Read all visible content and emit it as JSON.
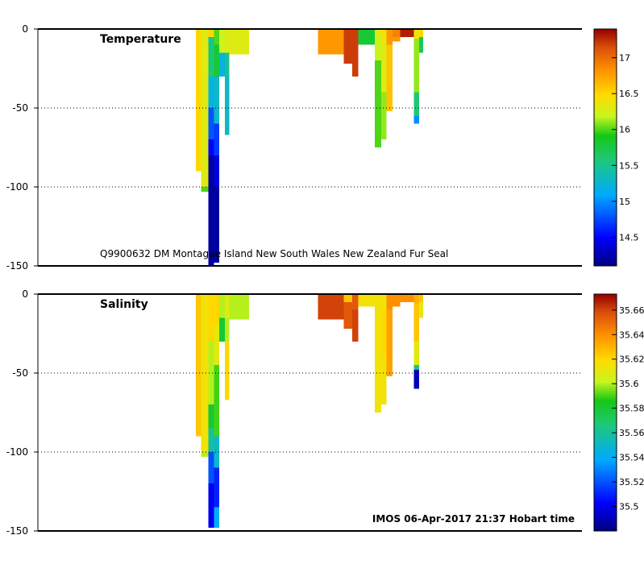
{
  "chart_data": [
    {
      "type": "heatmap",
      "panel": "temperature",
      "title": "Temperature",
      "caption": "Q9900632 DM Montague Island New South Wales New Zealand Fur Seal",
      "ylabel": "",
      "ylim": [
        -150,
        0
      ],
      "yticks": [
        0,
        -50,
        -100,
        -150
      ],
      "ytick_labels": [
        "0",
        "-50",
        "-100",
        "-150"
      ],
      "colorbar": {
        "range": [
          14.1,
          17.4
        ],
        "ticks": [
          14.5,
          15,
          15.5,
          16,
          16.5,
          17
        ],
        "tick_labels": [
          "14.5",
          "15",
          "15.5",
          "16",
          "16.5",
          "17"
        ]
      },
      "x_range": [
        0,
        100
      ],
      "profiles": [
        {
          "x": [
            29.0,
            30.0
          ],
          "segments": [
            [
              0,
              90,
              16.5
            ]
          ]
        },
        {
          "x": [
            30.0,
            31.3
          ],
          "segments": [
            [
              0,
              100,
              16.3
            ],
            [
              100,
              103,
              16.0
            ]
          ]
        },
        {
          "x": [
            31.3,
            32.4
          ],
          "segments": [
            [
              0,
              5,
              16.5
            ],
            [
              5,
              10,
              15.5
            ],
            [
              10,
              30,
              15.6
            ],
            [
              30,
              50,
              15.2
            ],
            [
              50,
              70,
              14.8
            ],
            [
              70,
              80,
              14.5
            ],
            [
              80,
              150,
              14.2
            ]
          ]
        },
        {
          "x": [
            32.4,
            33.3
          ],
          "segments": [
            [
              0,
              10,
              16.0
            ],
            [
              10,
              30,
              15.8
            ],
            [
              30,
              60,
              15.3
            ],
            [
              60,
              80,
              14.7
            ],
            [
              80,
              100,
              14.4
            ],
            [
              100,
              148,
              14.2
            ]
          ]
        },
        {
          "x": [
            33.3,
            34.4
          ],
          "segments": [
            [
              0,
              15,
              16.2
            ],
            [
              15,
              30,
              15.2
            ]
          ]
        },
        {
          "x": [
            34.4,
            35.2
          ],
          "segments": [
            [
              0,
              15,
              16.3
            ],
            [
              15,
              30,
              15.5
            ],
            [
              30,
              67,
              15.3
            ]
          ]
        },
        {
          "x": [
            35.2,
            38.8
          ],
          "segments": [
            [
              0,
              16,
              16.3
            ]
          ]
        },
        {
          "x": [
            51.5,
            56.2
          ],
          "segments": [
            [
              0,
              16,
              16.8
            ]
          ]
        },
        {
          "x": [
            56.2,
            57.8
          ],
          "segments": [
            [
              0,
              10,
              17.2
            ],
            [
              10,
              22,
              17.2
            ]
          ]
        },
        {
          "x": [
            57.8,
            58.9
          ],
          "segments": [
            [
              0,
              10,
              17.2
            ],
            [
              10,
              30,
              17.2
            ]
          ]
        },
        {
          "x": [
            58.9,
            61.9
          ],
          "segments": [
            [
              0,
              10,
              15.8
            ]
          ]
        },
        {
          "x": [
            61.9,
            63.1
          ],
          "segments": [
            [
              0,
              5,
              16.3
            ],
            [
              5,
              20,
              16.2
            ],
            [
              20,
              75,
              16.0
            ]
          ]
        },
        {
          "x": [
            63.1,
            64.1
          ],
          "segments": [
            [
              0,
              10,
              16.4
            ],
            [
              10,
              40,
              16.3
            ],
            [
              40,
              70,
              16.1
            ]
          ]
        },
        {
          "x": [
            64.1,
            65.2
          ],
          "segments": [
            [
              0,
              10,
              16.8
            ],
            [
              10,
              52,
              16.6
            ]
          ]
        },
        {
          "x": [
            65.2,
            66.6
          ],
          "segments": [
            [
              0,
              5,
              16.9
            ],
            [
              5,
              8,
              16.8
            ]
          ]
        },
        {
          "x": [
            66.6,
            69.1
          ],
          "segments": [
            [
              0,
              5,
              17.3
            ]
          ]
        },
        {
          "x": [
            69.1,
            70.1
          ],
          "segments": [
            [
              0,
              6,
              16.4
            ],
            [
              6,
              40,
              16.1
            ],
            [
              40,
              55,
              15.6
            ],
            [
              55,
              60,
              15.0
            ]
          ]
        },
        {
          "x": [
            70.1,
            70.8
          ],
          "segments": [
            [
              0,
              5,
              16.5
            ],
            [
              5,
              15,
              15.7
            ]
          ]
        }
      ]
    },
    {
      "type": "heatmap",
      "panel": "salinity",
      "title": "Salinity",
      "caption": "",
      "ylabel": "",
      "ylim": [
        -150,
        0
      ],
      "yticks": [
        0,
        -50,
        -100,
        -150
      ],
      "ytick_labels": [
        "0",
        "-50",
        "-100",
        "-150"
      ],
      "colorbar": {
        "range": [
          35.48,
          35.673
        ],
        "ticks": [
          35.5,
          35.52,
          35.54,
          35.56,
          35.58,
          35.6,
          35.62,
          35.64,
          35.66
        ],
        "tick_labels": [
          "35.5",
          "35.52",
          "35.54",
          "35.56",
          "35.58",
          "35.6",
          "35.62",
          "35.64",
          "35.66"
        ]
      },
      "x_range": [
        0,
        100
      ],
      "profiles": [
        {
          "x": [
            29.0,
            30.0
          ],
          "segments": [
            [
              0,
              90,
              35.625
            ]
          ]
        },
        {
          "x": [
            30.0,
            31.3
          ],
          "segments": [
            [
              0,
              100,
              35.615
            ],
            [
              100,
              103,
              35.6
            ]
          ]
        },
        {
          "x": [
            31.3,
            32.4
          ],
          "segments": [
            [
              0,
              30,
              35.62
            ],
            [
              30,
              70,
              35.6
            ],
            [
              70,
              85,
              35.58
            ],
            [
              85,
              100,
              35.56
            ],
            [
              100,
              120,
              35.52
            ],
            [
              120,
              148,
              35.5
            ]
          ]
        },
        {
          "x": [
            32.4,
            33.3
          ],
          "segments": [
            [
              0,
              20,
              35.62
            ],
            [
              20,
              45,
              35.61
            ],
            [
              45,
              90,
              35.59
            ],
            [
              90,
              110,
              35.55
            ],
            [
              110,
              135,
              35.51
            ],
            [
              135,
              148,
              35.54
            ]
          ]
        },
        {
          "x": [
            33.3,
            34.4
          ],
          "segments": [
            [
              0,
              15,
              35.6
            ],
            [
              15,
              30,
              35.58
            ]
          ]
        },
        {
          "x": [
            34.4,
            35.2
          ],
          "segments": [
            [
              0,
              15,
              35.61
            ],
            [
              15,
              30,
              35.6
            ],
            [
              30,
              67,
              35.62
            ]
          ]
        },
        {
          "x": [
            35.2,
            38.8
          ],
          "segments": [
            [
              0,
              16,
              35.6
            ]
          ]
        },
        {
          "x": [
            51.5,
            56.2
          ],
          "segments": [
            [
              0,
              8,
              35.66
            ],
            [
              8,
              16,
              35.66
            ]
          ]
        },
        {
          "x": [
            56.2,
            57.8
          ],
          "segments": [
            [
              0,
              5,
              35.625
            ],
            [
              5,
              22,
              35.655
            ]
          ]
        },
        {
          "x": [
            57.8,
            58.9
          ],
          "segments": [
            [
              0,
              10,
              35.655
            ],
            [
              10,
              30,
              35.66
            ]
          ]
        },
        {
          "x": [
            58.9,
            61.9
          ],
          "segments": [
            [
              0,
              8,
              35.615
            ]
          ]
        },
        {
          "x": [
            61.9,
            63.1
          ],
          "segments": [
            [
              0,
              5,
              35.615
            ],
            [
              5,
              75,
              35.615
            ]
          ]
        },
        {
          "x": [
            63.1,
            64.1
          ],
          "segments": [
            [
              0,
              10,
              35.615
            ],
            [
              10,
              40,
              35.62
            ],
            [
              40,
              70,
              35.615
            ]
          ]
        },
        {
          "x": [
            64.1,
            65.2
          ],
          "segments": [
            [
              0,
              10,
              35.64
            ],
            [
              10,
              52,
              35.635
            ]
          ]
        },
        {
          "x": [
            65.2,
            66.6
          ],
          "segments": [
            [
              0,
              5,
              35.64
            ],
            [
              5,
              8,
              35.64
            ]
          ]
        },
        {
          "x": [
            66.6,
            69.1
          ],
          "segments": [
            [
              0,
              5,
              35.64
            ]
          ]
        },
        {
          "x": [
            69.1,
            70.1
          ],
          "segments": [
            [
              0,
              6,
              35.63
            ],
            [
              6,
              30,
              35.625
            ],
            [
              30,
              45,
              35.61
            ],
            [
              45,
              48,
              35.56
            ],
            [
              48,
              60,
              35.49
            ]
          ]
        },
        {
          "x": [
            70.1,
            70.8
          ],
          "segments": [
            [
              0,
              5,
              35.625
            ],
            [
              5,
              15,
              35.61
            ]
          ]
        }
      ]
    }
  ],
  "footer": "IMOS 06-Apr-2017 21:37 Hobart time"
}
